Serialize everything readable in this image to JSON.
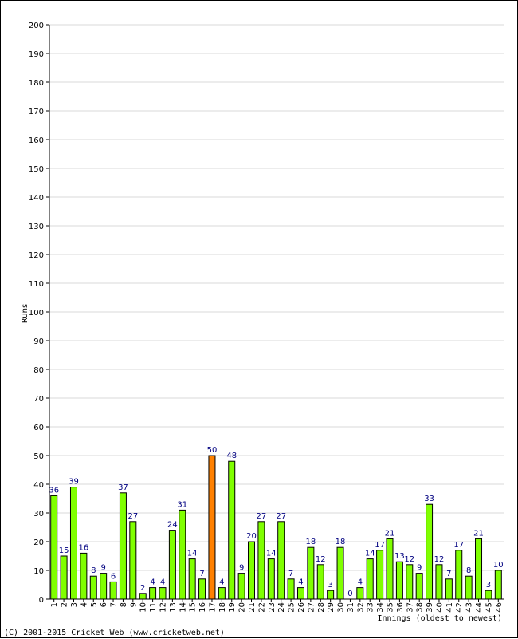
{
  "chart_data": {
    "type": "bar",
    "title": "",
    "xlabel": "Innings (oldest to newest)",
    "ylabel": "Runs",
    "ylim": [
      0,
      200
    ],
    "ytick_step": 10,
    "grid": true,
    "categories": [
      "1",
      "2",
      "3",
      "4",
      "5",
      "6",
      "7",
      "8",
      "9",
      "10",
      "11",
      "12",
      "13",
      "14",
      "15",
      "16",
      "17",
      "18",
      "19",
      "20",
      "21",
      "22",
      "23",
      "24",
      "25",
      "26",
      "27",
      "28",
      "29",
      "30",
      "31",
      "32",
      "33",
      "34",
      "35",
      "36",
      "37",
      "38",
      "39",
      "40",
      "41",
      "42",
      "43",
      "44",
      "45",
      "46"
    ],
    "values": [
      36,
      15,
      39,
      16,
      8,
      9,
      6,
      37,
      27,
      2,
      4,
      4,
      24,
      31,
      14,
      7,
      50,
      4,
      48,
      9,
      20,
      27,
      14,
      27,
      7,
      4,
      18,
      12,
      3,
      18,
      0,
      4,
      14,
      17,
      21,
      13,
      12,
      9,
      33,
      12,
      7,
      17,
      8,
      21,
      3,
      10
    ],
    "highlight_index": 16,
    "bar_color": "#80ff00",
    "highlight_color": "#ff8000",
    "label_color": "#000080"
  },
  "footer": {
    "copyright": "(C) 2001-2015 Cricket Web (www.cricketweb.net)"
  }
}
